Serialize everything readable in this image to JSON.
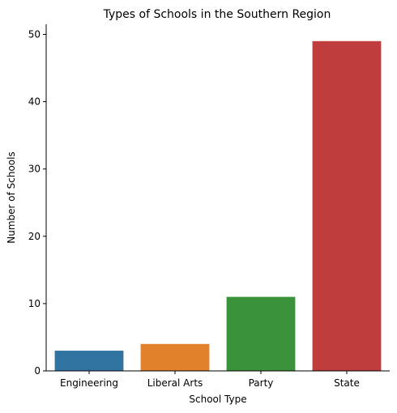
{
  "chart_data": {
    "type": "bar",
    "title": "Types of Schools in the Southern Region",
    "xlabel": "School Type",
    "ylabel": "Number of Schools",
    "categories": [
      "Engineering",
      "Liberal Arts",
      "Party",
      "State"
    ],
    "values": [
      3,
      4,
      11,
      49
    ],
    "colors": [
      "#3274a1",
      "#e1812c",
      "#3a923a",
      "#c03d3e"
    ],
    "ylim": [
      0,
      51.5
    ],
    "yticks": [
      0,
      10,
      20,
      30,
      40,
      50
    ],
    "grid": false,
    "legend": "none"
  }
}
